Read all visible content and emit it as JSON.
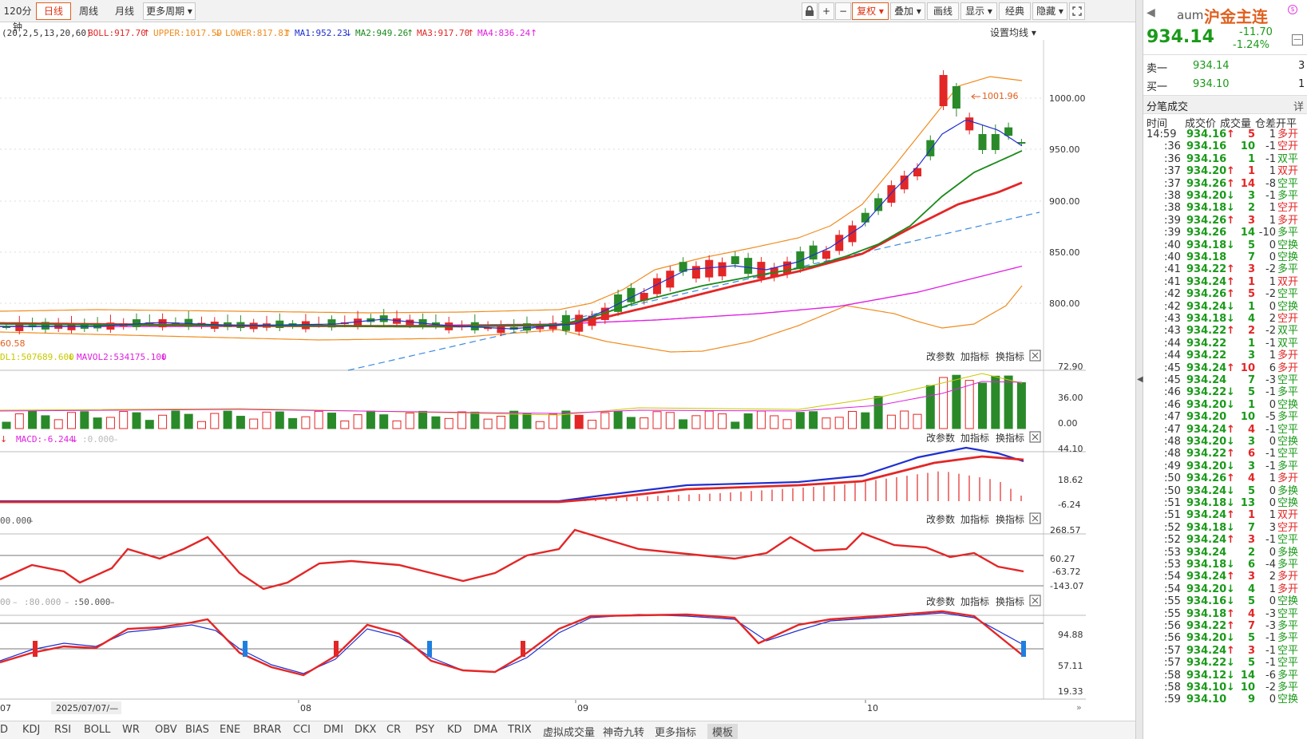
{
  "toolbar": {
    "period_120": "120分钟",
    "daily": "日线",
    "weekly": "周线",
    "monthly": "月线",
    "more_periods": "更多周期",
    "lock_icon": "lock-icon",
    "zoom_in": "+",
    "zoom_out": "−",
    "restore_rights": "复权",
    "overlay": "叠加",
    "draw_line": "画线",
    "display": "显示",
    "classic": "经典",
    "hide": "隐藏",
    "fullscreen_icon": "fullscreen-icon"
  },
  "main_chart": {
    "params": "(20,2,5,13,20,60)",
    "boll": "BOLL:917.70",
    "upper": "UPPER:1017.59",
    "lower": "LOWER:817.81",
    "ma1": "MA1:952.23",
    "ma2": "MA2:949.26",
    "ma3": "MA3:917.70",
    "ma4": "MA4:836.24",
    "settings": "设置均线",
    "high_label": "1001.96",
    "low_label": "60.58",
    "y_ticks": [
      "1000.00",
      "950.00",
      "900.00",
      "850.00",
      "800.00"
    ]
  },
  "vol_panel": {
    "legend1": "DL1:507689.600",
    "legend2": "MAVOL2:534175.100",
    "y_ticks": [
      "72.90",
      "36.00",
      "0.00"
    ]
  },
  "macd_panel": {
    "legend1": "MACD:-6.244",
    "legend2": ":0.000",
    "y_ticks": [
      "44.10",
      "18.62",
      "-6.24"
    ]
  },
  "cci_panel": {
    "legend1": "00.000",
    "y_ticks": [
      "268.57",
      "60.27",
      "-63.72",
      "-143.07"
    ]
  },
  "kdj_panel": {
    "legend1": "00",
    "legend2": ":80.000",
    "legend3": ":50.000",
    "y_ticks": [
      "94.88",
      "57.11",
      "19.33"
    ]
  },
  "panel_buttons": {
    "change_params": "改参数",
    "add_indicator": "加指标",
    "switch_indicator": "换指标"
  },
  "x_axis": {
    "labels": [
      "07",
      "2025/07/07/—",
      "08",
      "09",
      "10"
    ]
  },
  "bottom_tabs": [
    "D",
    "KDJ",
    "RSI",
    "BOLL",
    "WR",
    "OBV",
    "BIAS",
    "ENE",
    "BRAR",
    "CCI",
    "DMI",
    "DKX",
    "CR",
    "PSY",
    "KD",
    "DMA",
    "TRIX",
    "虚拟成交量",
    "神奇九转",
    "更多指标",
    "模板"
  ],
  "quote": {
    "code": "aum",
    "name": "沪金主连",
    "price": "934.14",
    "change": "-11.70",
    "change_pct": "-1.24%",
    "ask_label": "卖一",
    "ask_price": "934.14",
    "ask_vol": "3",
    "bid_label": "买一",
    "bid_price": "934.10",
    "bid_vol": "1"
  },
  "ticks": {
    "title": "分笔成交",
    "detail": "详",
    "headers": [
      "时间",
      "成交价",
      "成交量",
      "仓差",
      "开平"
    ],
    "rows": [
      [
        "14:59",
        "934.16",
        "up",
        "5",
        "1",
        "多开"
      ],
      [
        ":36",
        "934.16",
        "",
        "10",
        "-1",
        "空开"
      ],
      [
        ":36",
        "934.16",
        "",
        "1",
        "-1",
        "双平"
      ],
      [
        ":37",
        "934.20",
        "up",
        "1",
        "1",
        "双开"
      ],
      [
        ":37",
        "934.26",
        "up",
        "14",
        "-8",
        "空平"
      ],
      [
        ":38",
        "934.20",
        "down",
        "3",
        "-1",
        "多平"
      ],
      [
        ":38",
        "934.18",
        "down",
        "2",
        "1",
        "空开"
      ],
      [
        ":39",
        "934.26",
        "up",
        "3",
        "1",
        "多开"
      ],
      [
        ":39",
        "934.26",
        "",
        "14",
        "-10",
        "多平"
      ],
      [
        ":40",
        "934.18",
        "down",
        "5",
        "0",
        "空换"
      ],
      [
        ":40",
        "934.18",
        "",
        "7",
        "0",
        "空换"
      ],
      [
        ":41",
        "934.22",
        "up",
        "3",
        "-2",
        "多平"
      ],
      [
        ":41",
        "934.24",
        "up",
        "1",
        "1",
        "双开"
      ],
      [
        ":42",
        "934.26",
        "up",
        "5",
        "-2",
        "空平"
      ],
      [
        ":42",
        "934.24",
        "down",
        "1",
        "0",
        "空换"
      ],
      [
        ":43",
        "934.18",
        "down",
        "4",
        "2",
        "空开"
      ],
      [
        ":43",
        "934.22",
        "up",
        "2",
        "-2",
        "双平"
      ],
      [
        ":44",
        "934.22",
        "",
        "1",
        "-1",
        "双平"
      ],
      [
        ":44",
        "934.22",
        "",
        "3",
        "1",
        "多开"
      ],
      [
        ":45",
        "934.24",
        "up",
        "10",
        "6",
        "多开"
      ],
      [
        ":45",
        "934.24",
        "",
        "7",
        "-3",
        "空平"
      ],
      [
        ":46",
        "934.22",
        "down",
        "5",
        "-1",
        "多平"
      ],
      [
        ":46",
        "934.20",
        "down",
        "1",
        "0",
        "空换"
      ],
      [
        ":47",
        "934.20",
        "",
        "10",
        "-5",
        "多平"
      ],
      [
        ":47",
        "934.24",
        "up",
        "4",
        "-1",
        "空平"
      ],
      [
        ":48",
        "934.20",
        "down",
        "3",
        "0",
        "空换"
      ],
      [
        ":48",
        "934.22",
        "up",
        "6",
        "-1",
        "空平"
      ],
      [
        ":49",
        "934.20",
        "down",
        "3",
        "-1",
        "多平"
      ],
      [
        ":50",
        "934.26",
        "up",
        "4",
        "1",
        "多开"
      ],
      [
        ":50",
        "934.24",
        "down",
        "5",
        "0",
        "多换"
      ],
      [
        ":51",
        "934.18",
        "down",
        "13",
        "0",
        "空换"
      ],
      [
        ":51",
        "934.24",
        "up",
        "1",
        "1",
        "双开"
      ],
      [
        ":52",
        "934.18",
        "down",
        "7",
        "3",
        "空开"
      ],
      [
        ":52",
        "934.24",
        "up",
        "3",
        "-1",
        "空平"
      ],
      [
        ":53",
        "934.24",
        "",
        "2",
        "0",
        "多换"
      ],
      [
        ":53",
        "934.18",
        "down",
        "6",
        "-4",
        "多平"
      ],
      [
        ":54",
        "934.24",
        "up",
        "3",
        "2",
        "多开"
      ],
      [
        ":54",
        "934.20",
        "down",
        "4",
        "1",
        "多开"
      ],
      [
        ":55",
        "934.16",
        "down",
        "5",
        "0",
        "空换"
      ],
      [
        ":55",
        "934.18",
        "up",
        "4",
        "-3",
        "空平"
      ],
      [
        ":56",
        "934.22",
        "up",
        "7",
        "-3",
        "多平"
      ],
      [
        ":56",
        "934.20",
        "down",
        "5",
        "-1",
        "多平"
      ],
      [
        ":57",
        "934.24",
        "up",
        "3",
        "-1",
        "空平"
      ],
      [
        ":57",
        "934.22",
        "down",
        "5",
        "-1",
        "空平"
      ],
      [
        ":58",
        "934.12",
        "down",
        "14",
        "-6",
        "多平"
      ],
      [
        ":58",
        "934.10",
        "down",
        "10",
        "-2",
        "多平"
      ],
      [
        ":59",
        "934.10",
        "",
        "9",
        "0",
        "空换"
      ]
    ]
  },
  "colors": {
    "up": "#e32626",
    "down": "#2a8a2a",
    "price_green": "#1a9a1a",
    "accent": "#e06020"
  }
}
